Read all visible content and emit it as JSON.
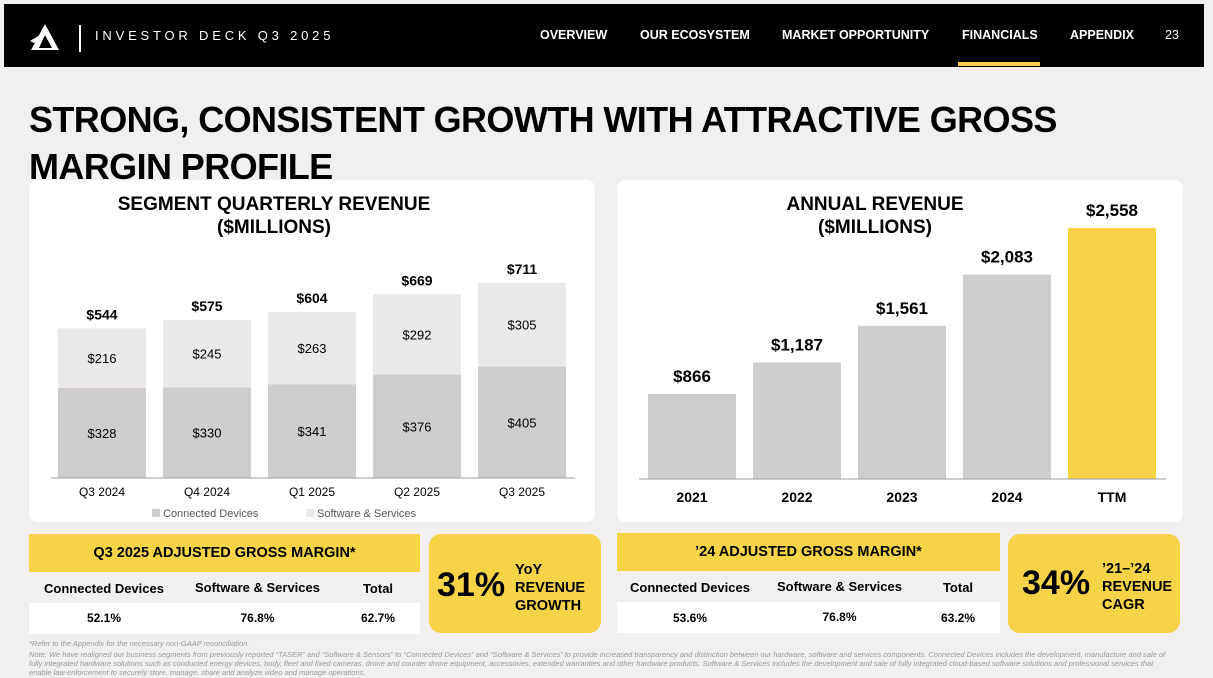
{
  "header": {
    "deck_title": "INVESTOR DECK Q3 2025",
    "nav": [
      "OVERVIEW",
      "OUR ECOSYSTEM",
      "MARKET OPPORTUNITY",
      "FINANCIALS",
      "APPENDIX"
    ],
    "active_nav": "FINANCIALS",
    "page_number": "23"
  },
  "title": "STRONG, CONSISTENT GROWTH WITH ATTRACTIVE GROSS MARGIN PROFILE",
  "colors": {
    "accent": "#f6d347",
    "connected_devices": "#cfcdce",
    "software_services": "#ebe8e8",
    "background": "#f1efef"
  },
  "chart_data": [
    {
      "type": "bar",
      "stacked": true,
      "title": "SEGMENT QUARTERLY REVENUE ($MILLIONS)",
      "title_lines": [
        "SEGMENT QUARTERLY REVENUE",
        "($MILLIONS)"
      ],
      "categories": [
        "Q3 2024",
        "Q4 2024",
        "Q1 2025",
        "Q2 2025",
        "Q3 2025"
      ],
      "series": [
        {
          "name": "Connected Devices",
          "values": [
            328,
            330,
            341,
            376,
            405
          ],
          "labels": [
            "$328",
            "$330",
            "$341",
            "$376",
            "$405"
          ]
        },
        {
          "name": "Software & Services",
          "values": [
            216,
            245,
            263,
            292,
            305
          ],
          "labels": [
            "$216",
            "$245",
            "$263",
            "$292",
            "$305"
          ]
        }
      ],
      "totals": [
        544,
        575,
        604,
        669,
        711
      ],
      "total_labels": [
        "$544",
        "$575",
        "$604",
        "$669",
        "$711"
      ],
      "legend": [
        "Connected Devices",
        "Software & Services"
      ],
      "legend_position": "bottom",
      "ylim": [
        0,
        800
      ]
    },
    {
      "type": "bar",
      "title": "ANNUAL REVENUE ($MILLIONS)",
      "title_lines": [
        "ANNUAL REVENUE",
        "($MILLIONS)"
      ],
      "categories": [
        "2021",
        "2022",
        "2023",
        "2024",
        "TTM"
      ],
      "values": [
        866,
        1187,
        1561,
        2083,
        2558
      ],
      "value_labels": [
        "$866",
        "$1,187",
        "$1,561",
        "$2,083",
        "$2,558"
      ],
      "highlight": "TTM",
      "ylim": [
        0,
        2700
      ]
    }
  ],
  "gross_margin_q3": {
    "title": "Q3 2025 ADJUSTED GROSS MARGIN*",
    "columns": [
      "Connected Devices",
      "Software & Services",
      "Total"
    ],
    "values": [
      "52.1%",
      "76.8%",
      "62.7%"
    ]
  },
  "kpi_yoy": {
    "value": "31%",
    "label_lines": [
      "YoY",
      "REVENUE",
      "GROWTH"
    ]
  },
  "gross_margin_24": {
    "title": "’24 ADJUSTED GROSS MARGIN*",
    "columns": [
      "Connected Devices",
      "Software & Services",
      "Total"
    ],
    "values": [
      "53.6%",
      "76.8%",
      "63.2%"
    ]
  },
  "kpi_cagr": {
    "value": "34%",
    "label_lines": [
      "’21–’24",
      "REVENUE",
      "CAGR"
    ]
  },
  "footnotes": {
    "line1": "*Refer to the Appendix for the necessary non-GAAP reconciliation.",
    "line2": "Note: We have realigned our business segments from previously reported “TASER” and “Software & Sensors” to “Connected Devices” and “Software & Services” to provide increased transparency and distinction between our hardware, software and services components. Connected Devices includes the development, manufacture and sale of",
    "line3": "fully integrated hardware solutions such as conducted energy devices, body, fleet and fixed cameras, drone and counter drone equipment, accessories, extended warranties and other hardware products. Software & Services includes the development and sale of fully integrated cloud-based software solutions and professional services that",
    "line4": "enable law enforcement to securely store, manage, share and analyze video and manage operations."
  }
}
